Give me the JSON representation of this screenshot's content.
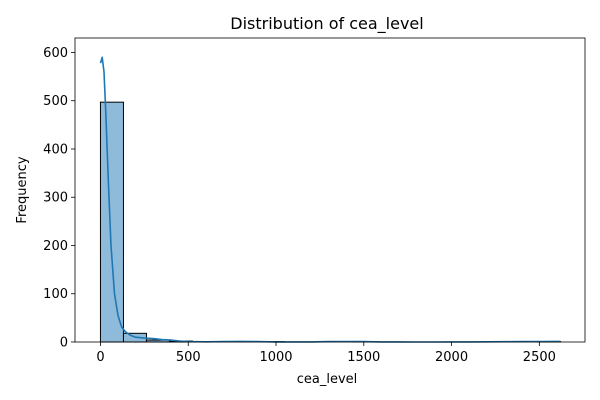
{
  "chart_data": {
    "type": "bar",
    "title": "Distribution of cea_level",
    "xlabel": "cea_level",
    "ylabel": "Frequency",
    "xlim": [
      -145,
      2760
    ],
    "ylim": [
      0,
      630
    ],
    "x_ticks": [
      0,
      500,
      1000,
      1500,
      2000,
      2500
    ],
    "y_ticks": [
      0,
      100,
      200,
      300,
      400,
      500,
      600
    ],
    "bin_edges": [
      0,
      131,
      262,
      393,
      524,
      655,
      786,
      917,
      1048,
      1179,
      1310,
      1441,
      1572,
      1703,
      1834,
      1965,
      2096,
      2227,
      2358,
      2489,
      2620
    ],
    "counts": [
      497,
      18,
      4,
      2,
      1,
      0,
      0,
      1,
      0,
      0,
      0,
      1,
      0,
      0,
      0,
      0,
      0,
      0,
      0,
      1
    ],
    "kde": {
      "x": [
        0,
        10,
        20,
        30,
        45,
        60,
        80,
        100,
        120,
        140,
        170,
        200,
        250,
        300,
        350,
        400,
        450,
        500,
        600,
        700,
        800,
        900,
        1000,
        1100,
        1200,
        1300,
        1400,
        1500,
        1600,
        1700,
        1800,
        1900,
        2000,
        2100,
        2200,
        2300,
        2400,
        2500,
        2620
      ],
      "y": [
        578,
        590,
        560,
        480,
        330,
        200,
        100,
        55,
        32,
        22,
        14,
        10,
        8,
        7,
        5,
        4,
        2,
        1,
        0.5,
        0.8,
        1.2,
        0.8,
        0.3,
        0.2,
        0.3,
        0.8,
        1.0,
        0.8,
        0.3,
        0.2,
        0.1,
        0.1,
        0.2,
        0.2,
        0.4,
        0.6,
        0.8,
        1.0,
        1.2
      ]
    },
    "colors": {
      "bar_fill": "#8fbbdb",
      "bar_edge": "#000000",
      "kde_line": "#1f77b4"
    },
    "grid": false,
    "legend": "none"
  }
}
